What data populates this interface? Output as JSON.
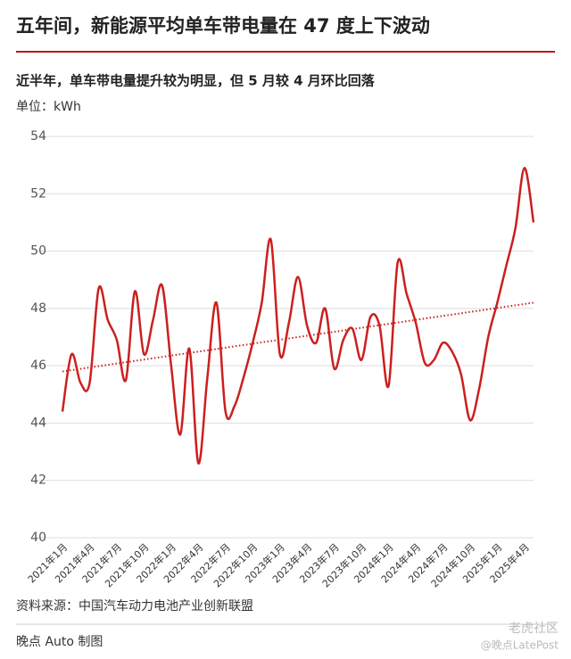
{
  "chart_data": {
    "type": "line",
    "title": "五年间，新能源平均单车带电量在 47 度上下波动",
    "subtitle": "近半年，单车带电量提升较为明显，但 5 月较 4 月环比回落",
    "y_label": "单位：kWh",
    "source": "资料来源：中国汽车动力电池产业创新联盟",
    "credit": "晚点 Auto 制图",
    "watermark": "老虎社区",
    "watermark2": "@晚点LatePost",
    "categories": [
      "2021年1月",
      null,
      null,
      "2021年4月",
      null,
      null,
      "2021年7月",
      null,
      null,
      "2021年10月",
      null,
      null,
      "2022年1月",
      null,
      null,
      "2022年4月",
      null,
      null,
      "2022年7月",
      null,
      null,
      "2022年10月",
      null,
      null,
      "2023年1月",
      null,
      null,
      "2023年4月",
      null,
      null,
      "2023年7月",
      null,
      null,
      "2023年10月",
      null,
      null,
      "2024年1月",
      null,
      null,
      "2024年4月",
      null,
      null,
      "2024年7月",
      null,
      null,
      "2024年10月",
      null,
      null,
      "2025年1月",
      null,
      null,
      "2025年4月",
      null
    ],
    "series": [
      {
        "color": "#cc1f1f",
        "values": [
          44.4,
          46.4,
          45.4,
          45.4,
          48.7,
          47.6,
          46.9,
          45.5,
          48.6,
          46.4,
          47.6,
          48.8,
          46.0,
          43.6,
          46.6,
          42.6,
          45.6,
          48.2,
          44.4,
          44.6,
          45.6,
          46.8,
          48.2,
          50.4,
          46.4,
          47.5,
          49.1,
          47.4,
          46.8,
          48.0,
          45.9,
          46.9,
          47.3,
          46.2,
          47.7,
          47.4,
          45.3,
          49.6,
          48.5,
          47.5,
          46.1,
          46.2,
          46.8,
          46.5,
          45.7,
          44.1,
          45.2,
          47.0,
          48.2,
          49.5,
          50.8,
          52.9,
          51.0
        ]
      }
    ],
    "trend": {
      "color": "#cc1f1f",
      "values": [
        45.8,
        48.2
      ]
    },
    "ylim": [
      40,
      54
    ],
    "yticks": [
      40,
      42,
      44,
      46,
      48,
      50,
      52,
      54
    ],
    "grid": true
  }
}
